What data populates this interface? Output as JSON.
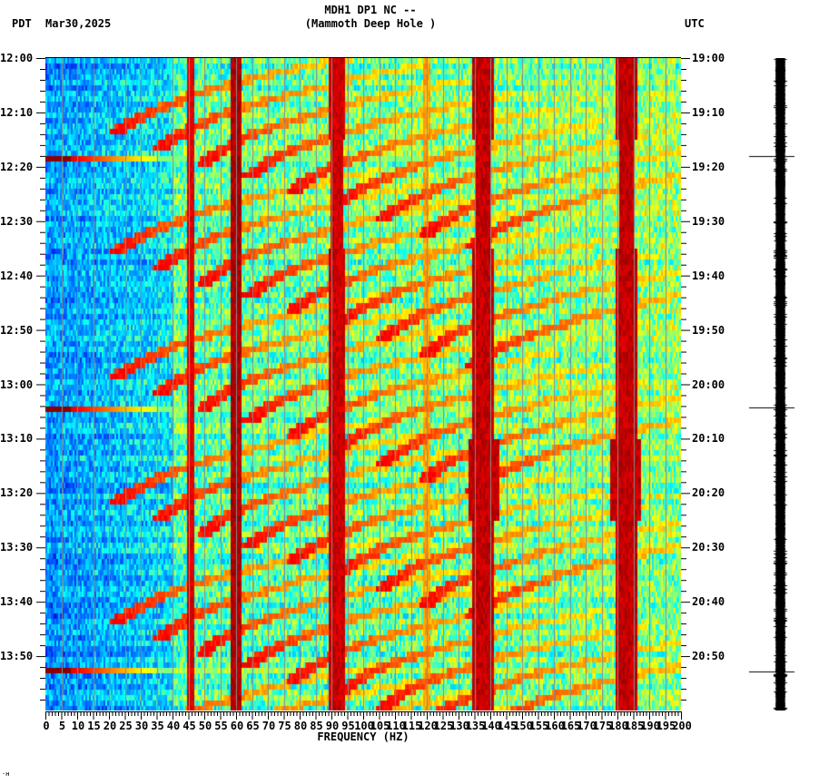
{
  "header": {
    "station_title": "MDH1 DP1 NC --",
    "station_subtitle": "(Mammoth Deep Hole )",
    "left_timezone": "PDT",
    "date": "Mar30,2025",
    "right_timezone": "UTC"
  },
  "footer": {
    "corner_mark": "·ʜ"
  },
  "chart_data": {
    "type": "heatmap",
    "title": "MDH1 DP1 NC -- (Mammoth Deep Hole )",
    "subtitle": "Mar30,2025",
    "xlabel": "FREQUENCY (HZ)",
    "ylabel_left": "PDT",
    "ylabel_right": "UTC",
    "xlim": [
      0,
      200
    ],
    "x_ticks": [
      0,
      5,
      10,
      15,
      20,
      25,
      30,
      35,
      40,
      45,
      50,
      55,
      60,
      65,
      70,
      75,
      80,
      85,
      90,
      95,
      100,
      105,
      110,
      115,
      120,
      125,
      130,
      135,
      140,
      145,
      150,
      155,
      160,
      165,
      170,
      175,
      180,
      185,
      190,
      195,
      200
    ],
    "x_minor_tick_step": 1,
    "y_ticks_left": [
      "12:00",
      "12:10",
      "12:20",
      "12:30",
      "12:40",
      "12:50",
      "13:00",
      "13:10",
      "13:20",
      "13:30",
      "13:40",
      "13:50"
    ],
    "y_ticks_right": [
      "19:00",
      "19:10",
      "19:20",
      "19:30",
      "19:40",
      "19:50",
      "20:00",
      "20:10",
      "20:20",
      "20:30",
      "20:40",
      "20:50"
    ],
    "y_minor_tick_step_minutes": 2,
    "time_range_minutes": 120,
    "grid": {
      "vertical_every_hz": 5,
      "color": "#8a8a8a"
    },
    "colormap": [
      "#0000c8",
      "#0050ff",
      "#00a0ff",
      "#00ffff",
      "#80ff80",
      "#ffff00",
      "#ff8000",
      "#ff0000",
      "#8b0000"
    ],
    "background_level": {
      "low_freq_hz_below": 40,
      "low_level": 0.22,
      "high_level": 0.45
    },
    "persistent_lines_hz": [
      {
        "freq": 45.5,
        "width_hz": 0.6,
        "level": 0.95
      },
      {
        "freq": 59.8,
        "width_hz": 1.2,
        "level": 1.0
      },
      {
        "freq": 91.5,
        "width_hz": 1.4,
        "level": 0.97
      },
      {
        "freq": 137.5,
        "width_hz": 1.8,
        "level": 0.98
      },
      {
        "freq": 182.5,
        "width_hz": 1.8,
        "level": 0.98
      },
      {
        "freq": 119.5,
        "width_hz": 0.4,
        "level": 0.75
      }
    ],
    "broadband_bursts_minutes": [
      18.3,
      64.5,
      112.3
    ],
    "gliding_tone_cycles_minutes": [
      0,
      22,
      45,
      68,
      90,
      113
    ],
    "seismogram_spikes_minutes": [
      18.0,
      64.2,
      112.8
    ]
  }
}
